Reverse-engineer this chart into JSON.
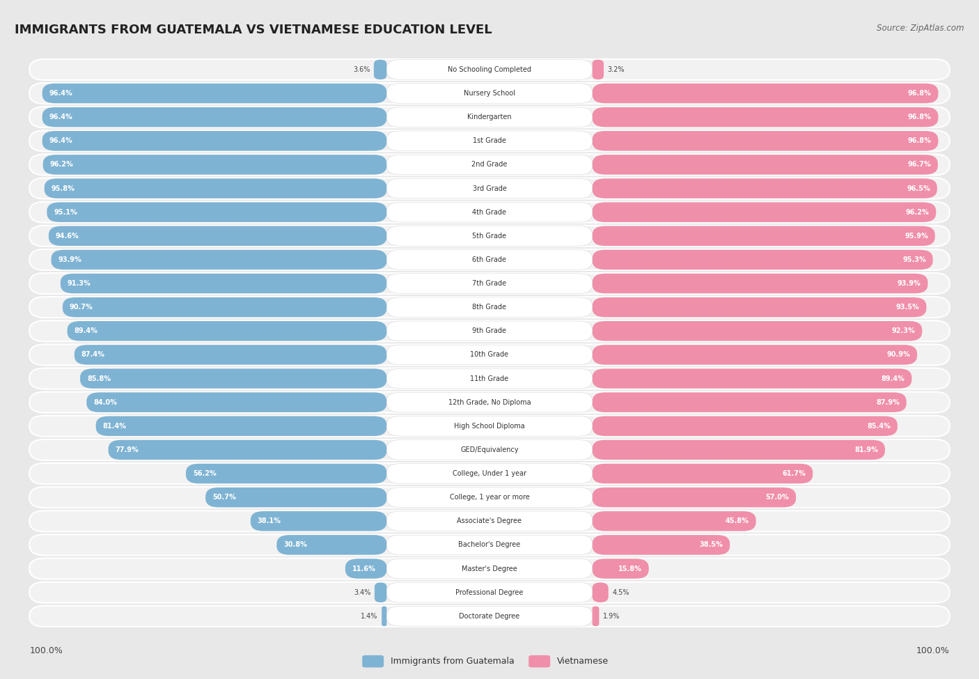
{
  "title": "IMMIGRANTS FROM GUATEMALA VS VIETNAMESE EDUCATION LEVEL",
  "source": "Source: ZipAtlas.com",
  "categories": [
    "No Schooling Completed",
    "Nursery School",
    "Kindergarten",
    "1st Grade",
    "2nd Grade",
    "3rd Grade",
    "4th Grade",
    "5th Grade",
    "6th Grade",
    "7th Grade",
    "8th Grade",
    "9th Grade",
    "10th Grade",
    "11th Grade",
    "12th Grade, No Diploma",
    "High School Diploma",
    "GED/Equivalency",
    "College, Under 1 year",
    "College, 1 year or more",
    "Associate's Degree",
    "Bachelor's Degree",
    "Master's Degree",
    "Professional Degree",
    "Doctorate Degree"
  ],
  "guatemala": [
    3.6,
    96.4,
    96.4,
    96.4,
    96.2,
    95.8,
    95.1,
    94.6,
    93.9,
    91.3,
    90.7,
    89.4,
    87.4,
    85.8,
    84.0,
    81.4,
    77.9,
    56.2,
    50.7,
    38.1,
    30.8,
    11.6,
    3.4,
    1.4
  ],
  "vietnamese": [
    3.2,
    96.8,
    96.8,
    96.8,
    96.7,
    96.5,
    96.2,
    95.9,
    95.3,
    93.9,
    93.5,
    92.3,
    90.9,
    89.4,
    87.9,
    85.4,
    81.9,
    61.7,
    57.0,
    45.8,
    38.5,
    15.8,
    4.5,
    1.9
  ],
  "guatemala_color": "#7fb3d3",
  "vietnamese_color": "#f08faa",
  "bg_color": "#e8e8e8",
  "row_bg_color": "#f2f2f2",
  "legend_guatemala": "Immigrants from Guatemala",
  "legend_vietnamese": "Vietnamese",
  "axis_label_left": "100.0%",
  "axis_label_right": "100.0%"
}
